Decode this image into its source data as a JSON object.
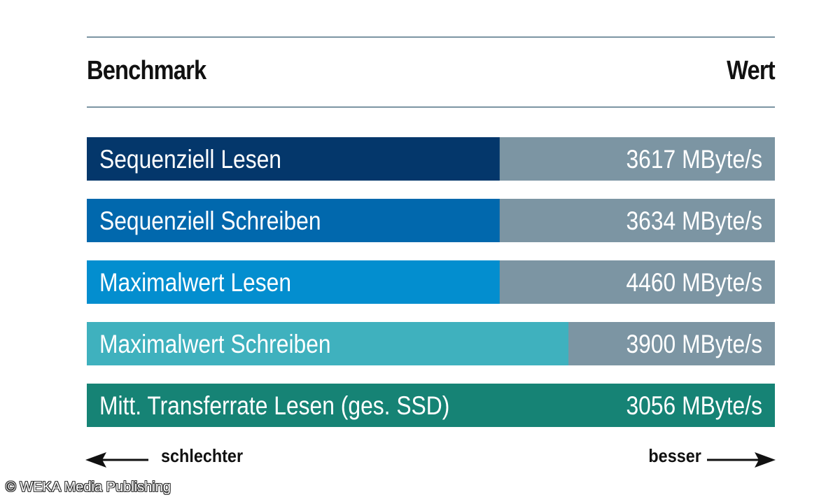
{
  "header": {
    "left_label": "Benchmark",
    "right_label": "Wert"
  },
  "chart_data": {
    "type": "bar",
    "orientation": "horizontal",
    "categories": [
      "Sequenziell Lesen",
      "Sequenziell Schreiben",
      "Maximalwert Lesen",
      "Maximalwert Schreiben",
      "Mitt. Transferrate Lesen (ges. SSD)"
    ],
    "values": [
      3617,
      3634,
      4460,
      3900,
      3056
    ],
    "unit": "MByte/s",
    "value_labels": [
      "3617 MByte/s",
      "3634 MByte/s",
      "4460 MByte/s",
      "3900 MByte/s",
      "3056 MByte/s"
    ],
    "bar_fill_fraction": [
      0.6,
      0.6,
      0.6,
      0.7,
      1.0
    ],
    "colors": [
      "#04376b",
      "#0168ad",
      "#038ecf",
      "#3fb1be",
      "#168375"
    ],
    "remainder_color": "#7c95a3",
    "grid": false
  },
  "footer": {
    "worse_label": "schlechter",
    "better_label": "besser"
  },
  "copyright": "© WEKA Media Publishing"
}
